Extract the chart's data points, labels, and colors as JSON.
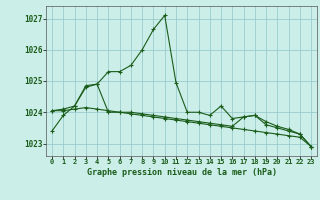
{
  "title": "Graphe pression niveau de la mer (hPa)",
  "background_color": "#cceee8",
  "grid_color": "#99cccc",
  "line_color": "#1a5c1a",
  "x_ticks": [
    0,
    1,
    2,
    3,
    4,
    5,
    6,
    7,
    8,
    9,
    10,
    11,
    12,
    13,
    14,
    15,
    16,
    17,
    18,
    19,
    20,
    21,
    22,
    23
  ],
  "ylim": [
    1022.6,
    1027.4
  ],
  "yticks": [
    1023,
    1024,
    1025,
    1026,
    1027
  ],
  "series1": [
    1023.4,
    1023.9,
    1024.2,
    1024.8,
    1024.9,
    1025.3,
    1025.3,
    1025.5,
    1026.0,
    1026.65,
    1027.1,
    1024.95,
    1024.0,
    1024.0,
    1023.9,
    1024.2,
    1023.8,
    1023.85,
    1023.9,
    1023.6,
    1023.5,
    1023.4,
    1023.3,
    1022.9
  ],
  "series2": [
    1024.05,
    1024.05,
    1024.1,
    1024.15,
    1024.1,
    1024.05,
    1024.0,
    1023.95,
    1023.9,
    1023.85,
    1023.8,
    1023.75,
    1023.7,
    1023.65,
    1023.6,
    1023.55,
    1023.5,
    1023.45,
    1023.4,
    1023.35,
    1023.3,
    1023.25,
    1023.2,
    1022.9
  ],
  "series3": [
    1024.05,
    1024.1,
    1024.2,
    1024.85,
    1024.9,
    1024.0,
    1024.0,
    1024.0,
    1023.95,
    1023.9,
    1023.85,
    1023.8,
    1023.75,
    1023.7,
    1023.65,
    1023.6,
    1023.55,
    1023.85,
    1023.9,
    1023.7,
    1023.55,
    1023.45,
    1023.3,
    1022.9
  ]
}
